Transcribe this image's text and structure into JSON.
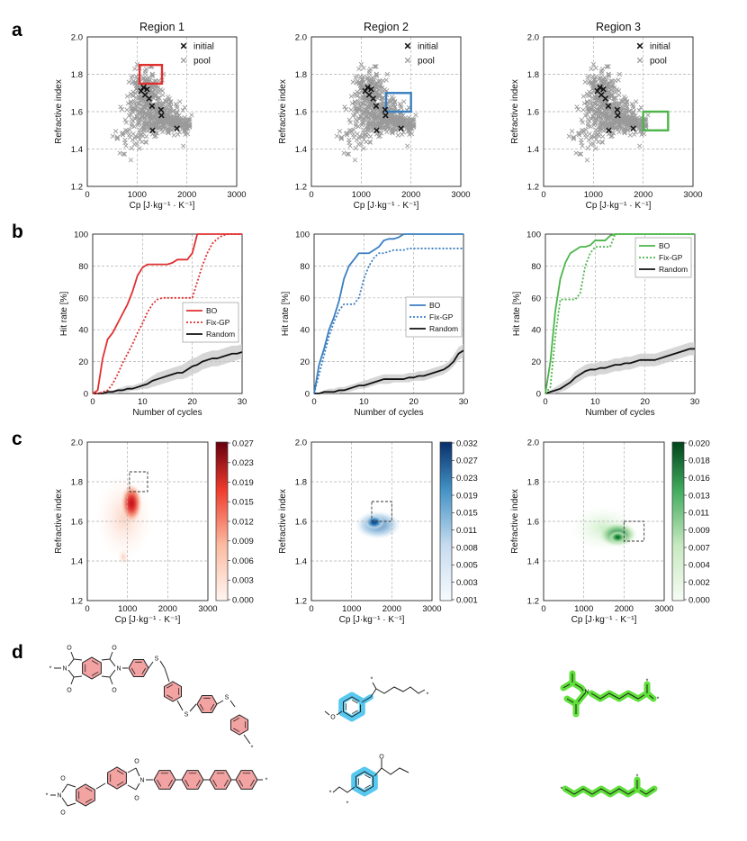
{
  "panel_labels": [
    "a",
    "b",
    "c",
    "d"
  ],
  "colors": {
    "r1": "#e03030",
    "r2": "#3a7fc1",
    "r3": "#4cb54a",
    "pool": "#9a9a9a",
    "initial": "#111111",
    "random": "#111111",
    "band": "#c8c8c8",
    "grid": "#b0b0b0",
    "highlight_r1": "#f4a3a3",
    "highlight_r2": "#57c8ef",
    "highlight_r3": "#5fe03a"
  },
  "chart_data": [
    {
      "panel": "a",
      "type": "scatter",
      "titles": [
        "Region 1",
        "Region 2",
        "Region 3"
      ],
      "xlabel": "Cp [J·kg⁻¹ · K⁻¹]",
      "ylabel": "Refractive index",
      "xlim": [
        0,
        3000
      ],
      "ylim": [
        1.2,
        2.0
      ],
      "xticks": [
        "0",
        "1000",
        "2000",
        "3000"
      ],
      "yticks": [
        "1.2",
        "1.4",
        "1.6",
        "1.8",
        "2.0"
      ],
      "legend": [
        "initial",
        "pool"
      ],
      "initial_points": [
        {
          "cp": 1080,
          "n": 1.71
        },
        {
          "cp": 1130,
          "n": 1.73
        },
        {
          "cp": 1160,
          "n": 1.69
        },
        {
          "cp": 1200,
          "n": 1.72
        },
        {
          "cp": 1240,
          "n": 1.67
        },
        {
          "cp": 1300,
          "n": 1.63
        },
        {
          "cp": 1310,
          "n": 1.5
        },
        {
          "cp": 1480,
          "n": 1.61
        },
        {
          "cp": 1490,
          "n": 1.58
        },
        {
          "cp": 1800,
          "n": 1.51
        }
      ],
      "regions": [
        {
          "name": "Region 1",
          "cp": [
            1050,
            1500
          ],
          "n": [
            1.75,
            1.85
          ]
        },
        {
          "name": "Region 2",
          "cp": [
            1500,
            2000
          ],
          "n": [
            1.6,
            1.7
          ]
        },
        {
          "name": "Region 3",
          "cp": [
            2000,
            2500
          ],
          "n": [
            1.5,
            1.6
          ]
        }
      ]
    },
    {
      "panel": "b",
      "type": "line",
      "xlabel": "Number of cycles",
      "ylabel": "Hit rate [%]",
      "xlim": [
        0,
        30
      ],
      "ylim": [
        0,
        100
      ],
      "xticks": [
        "0",
        "10",
        "20",
        "30"
      ],
      "yticks": [
        "0",
        "20",
        "40",
        "60",
        "80",
        "100"
      ],
      "legend": [
        "BO",
        "Fix-GP",
        "Random"
      ],
      "x": [
        0,
        1,
        2,
        3,
        4,
        5,
        6,
        7,
        8,
        9,
        10,
        11,
        12,
        13,
        14,
        15,
        16,
        17,
        18,
        19,
        20,
        21,
        22,
        23,
        24,
        25,
        26,
        27,
        28,
        29,
        30
      ],
      "panels": [
        {
          "region": "Region 1",
          "series": [
            {
              "name": "BO",
              "values": [
                0,
                2,
                22,
                34,
                38,
                44,
                50,
                56,
                64,
                74,
                79,
                81,
                81,
                81,
                81,
                81,
                82,
                84,
                84,
                84,
                88,
                100,
                100,
                100,
                100,
                100,
                100,
                100,
                100,
                100,
                100
              ]
            },
            {
              "name": "Fix-GP",
              "values": [
                0,
                0,
                1,
                2,
                6,
                12,
                19,
                25,
                31,
                38,
                44,
                51,
                56,
                59,
                60,
                60,
                60,
                60,
                60,
                60,
                60,
                70,
                80,
                88,
                94,
                97,
                99,
                100,
                100,
                100,
                100
              ]
            },
            {
              "name": "Random",
              "values": [
                0,
                0,
                0,
                1,
                1,
                2,
                2,
                3,
                3,
                4,
                5,
                6,
                8,
                9,
                10,
                11,
                12,
                13,
                13,
                15,
                17,
                18,
                20,
                21,
                22,
                22,
                23,
                24,
                25,
                25,
                26
              ]
            },
            {
              "name": "Random lower",
              "values": [
                0,
                0,
                0,
                0,
                0,
                0,
                1,
                1,
                2,
                2,
                3,
                3,
                4,
                5,
                6,
                7,
                8,
                9,
                9,
                10,
                12,
                13,
                15,
                16,
                17,
                17,
                18,
                19,
                20,
                21,
                22
              ]
            },
            {
              "name": "Random upper",
              "values": [
                0,
                0,
                1,
                2,
                2,
                3,
                4,
                5,
                5,
                6,
                7,
                9,
                11,
                13,
                14,
                15,
                16,
                17,
                18,
                20,
                22,
                23,
                25,
                26,
                27,
                27,
                28,
                29,
                30,
                30,
                31
              ]
            }
          ]
        },
        {
          "region": "Region 2",
          "series": [
            {
              "name": "BO",
              "values": [
                0,
                18,
                28,
                40,
                48,
                58,
                72,
                80,
                84,
                88,
                88,
                88,
                90,
                92,
                96,
                97,
                97,
                98,
                100,
                100,
                100,
                100,
                100,
                100,
                100,
                100,
                100,
                100,
                100,
                100,
                100
              ]
            },
            {
              "name": "Fix-GP",
              "values": [
                0,
                12,
                24,
                36,
                45,
                52,
                56,
                56,
                56,
                60,
                72,
                80,
                85,
                88,
                88,
                89,
                90,
                90,
                90,
                91,
                91,
                91,
                91,
                91,
                91,
                91,
                91,
                91,
                91,
                91,
                91
              ]
            },
            {
              "name": "Random",
              "values": [
                0,
                0,
                1,
                1,
                1,
                2,
                2,
                3,
                4,
                5,
                5,
                6,
                7,
                8,
                9,
                9,
                9,
                9,
                9,
                10,
                10,
                11,
                11,
                12,
                13,
                14,
                15,
                17,
                20,
                25,
                27
              ]
            },
            {
              "name": "Random lower",
              "values": [
                0,
                0,
                0,
                0,
                0,
                0,
                1,
                1,
                2,
                3,
                3,
                4,
                5,
                6,
                6,
                6,
                7,
                7,
                7,
                7,
                8,
                8,
                8,
                9,
                10,
                11,
                12,
                14,
                17,
                21,
                23
              ]
            },
            {
              "name": "Random upper",
              "values": [
                0,
                0,
                2,
                3,
                3,
                4,
                4,
                5,
                6,
                7,
                8,
                9,
                10,
                11,
                12,
                12,
                12,
                12,
                12,
                13,
                13,
                14,
                14,
                15,
                16,
                17,
                18,
                20,
                24,
                29,
                31
              ]
            }
          ]
        },
        {
          "region": "Region 3",
          "series": [
            {
              "name": "BO",
              "values": [
                0,
                20,
                52,
                72,
                82,
                88,
                90,
                92,
                92,
                93,
                96,
                96,
                96,
                99,
                100,
                100,
                100,
                100,
                100,
                100,
                100,
                100,
                100,
                100,
                100,
                100,
                100,
                100,
                100,
                100,
                100
              ]
            },
            {
              "name": "Fix-GP",
              "values": [
                0,
                4,
                36,
                59,
                59,
                59,
                59,
                63,
                80,
                88,
                92,
                92,
                92,
                92,
                100,
                100,
                100,
                100,
                100,
                100,
                100,
                100,
                100,
                100,
                100,
                100,
                100,
                100,
                100,
                100,
                100
              ]
            },
            {
              "name": "Random",
              "values": [
                0,
                1,
                2,
                3,
                5,
                7,
                10,
                12,
                14,
                15,
                15,
                16,
                16,
                17,
                18,
                18,
                19,
                19,
                20,
                21,
                21,
                21,
                21,
                22,
                23,
                24,
                25,
                26,
                27,
                28,
                28
              ]
            },
            {
              "name": "Random lower",
              "values": [
                0,
                0,
                0,
                1,
                2,
                4,
                6,
                8,
                10,
                11,
                11,
                12,
                12,
                13,
                14,
                14,
                15,
                15,
                16,
                17,
                17,
                17,
                17,
                18,
                19,
                20,
                21,
                22,
                23,
                24,
                24
              ]
            },
            {
              "name": "Random upper",
              "values": [
                0,
                2,
                4,
                6,
                8,
                10,
                14,
                16,
                18,
                19,
                19,
                20,
                20,
                21,
                22,
                22,
                23,
                23,
                24,
                25,
                25,
                25,
                25,
                26,
                27,
                28,
                29,
                30,
                31,
                32,
                32
              ]
            }
          ]
        }
      ]
    },
    {
      "panel": "c",
      "type": "heatmap",
      "xlabel": "Cp [J·kg⁻¹ · K⁻¹]",
      "ylabel": "Refractive index",
      "xlim": [
        0,
        3000
      ],
      "ylim": [
        1.2,
        2.0
      ],
      "xticks": [
        "0",
        "1000",
        "2000",
        "3000"
      ],
      "yticks": [
        "1.2",
        "1.4",
        "1.6",
        "1.8",
        "2.0"
      ],
      "panels": [
        {
          "region": "Region 1",
          "colorbar": [
            "0.027",
            "0.023",
            "0.019",
            "0.015",
            "0.012",
            "0.009",
            "0.006",
            "0.003",
            "0.000"
          ],
          "peak": {
            "cp": 1100,
            "n": 1.7
          },
          "target": {
            "cp": [
              1050,
              1500
            ],
            "n": [
              1.75,
              1.85
            ]
          }
        },
        {
          "region": "Region 2",
          "colorbar": [
            "0.032",
            "0.027",
            "0.023",
            "0.019",
            "0.015",
            "0.011",
            "0.008",
            "0.005",
            "0.003",
            "0.001"
          ],
          "peak": {
            "cp": 1520,
            "n": 1.6
          },
          "target": {
            "cp": [
              1500,
              2000
            ],
            "n": [
              1.6,
              1.7
            ]
          }
        },
        {
          "region": "Region 3",
          "colorbar": [
            "0.020",
            "0.018",
            "0.016",
            "0.013",
            "0.011",
            "0.009",
            "0.007",
            "0.004",
            "0.002",
            "0.000"
          ],
          "peak": {
            "cp": 1800,
            "n": 1.52
          },
          "target": {
            "cp": [
              2000,
              2500
            ],
            "n": [
              1.5,
              1.6
            ]
          }
        }
      ]
    }
  ],
  "molecules": {
    "labels": [
      "O",
      "N",
      "S",
      "O"
    ]
  }
}
